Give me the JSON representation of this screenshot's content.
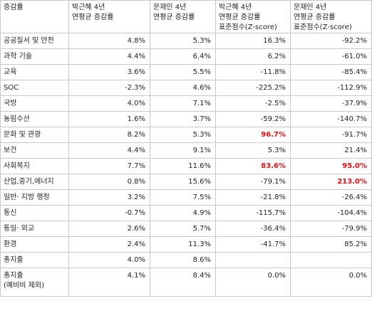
{
  "headers": [
    [
      "증감률"
    ],
    [
      "박근혜 4년",
      "연평균 증감률"
    ],
    [
      "문재인 4년",
      "연평균 증감률"
    ],
    [
      "박근혜 4년",
      "연평균 증감률",
      "표준점수(Z-score)"
    ],
    [
      "문재인 4년",
      "연평균 증감률",
      "표준점수(Z-score)"
    ]
  ],
  "rows": [
    {
      "label": [
        "공공질서 및 안전"
      ],
      "cells": [
        "4.8%",
        "5.3%",
        "16.3%",
        "-92.2%"
      ],
      "highlight": [
        false,
        false,
        false,
        false
      ]
    },
    {
      "label": [
        "과학 기술"
      ],
      "cells": [
        "4.4%",
        "6.4%",
        "6.2%",
        "-61.0%"
      ],
      "highlight": [
        false,
        false,
        false,
        false
      ]
    },
    {
      "label": [
        "교육"
      ],
      "cells": [
        "3.6%",
        "5.5%",
        "-11.8%",
        "-85.4%"
      ],
      "highlight": [
        false,
        false,
        false,
        false
      ]
    },
    {
      "label": [
        "SOC"
      ],
      "cells": [
        "-2.3%",
        "4.6%",
        "-225.2%",
        "-112.9%"
      ],
      "highlight": [
        false,
        false,
        false,
        false
      ]
    },
    {
      "label": [
        "국방"
      ],
      "cells": [
        "4.0%",
        "7.1%",
        "-2.5%",
        "-37.9%"
      ],
      "highlight": [
        false,
        false,
        false,
        false
      ]
    },
    {
      "label": [
        "농림수산"
      ],
      "cells": [
        "1.6%",
        "3.7%",
        "-59.2%",
        "-140.7%"
      ],
      "highlight": [
        false,
        false,
        false,
        false
      ]
    },
    {
      "label": [
        "문화 및 관광"
      ],
      "cells": [
        "8.2%",
        "5.3%",
        "96.7%",
        "-91.7%"
      ],
      "highlight": [
        false,
        false,
        true,
        false
      ]
    },
    {
      "label": [
        "보건"
      ],
      "cells": [
        "4.4%",
        "9.1%",
        "5.3%",
        "21.4%"
      ],
      "highlight": [
        false,
        false,
        false,
        false
      ]
    },
    {
      "label": [
        "사회복지"
      ],
      "cells": [
        "7.7%",
        "11.6%",
        "83.6%",
        "95.0%"
      ],
      "highlight": [
        false,
        false,
        true,
        true
      ]
    },
    {
      "label": [
        "산업,중기,에너지"
      ],
      "cells": [
        "0.8%",
        "15.6%",
        "-79.1%",
        "213.0%"
      ],
      "highlight": [
        false,
        false,
        false,
        true
      ]
    },
    {
      "label": [
        "일반· 지방 행정"
      ],
      "cells": [
        "3.2%",
        "7.5%",
        "-21.8%",
        "-26.4%"
      ],
      "highlight": [
        false,
        false,
        false,
        false
      ]
    },
    {
      "label": [
        "통신"
      ],
      "cells": [
        "-0.7%",
        "4.9%",
        "-115.7%",
        "-104.4%"
      ],
      "highlight": [
        false,
        false,
        false,
        false
      ]
    },
    {
      "label": [
        "통일· 외교"
      ],
      "cells": [
        "2.6%",
        "5.7%",
        "-36.4%",
        "-79.9%"
      ],
      "highlight": [
        false,
        false,
        false,
        false
      ]
    },
    {
      "label": [
        "환경"
      ],
      "cells": [
        "2.4%",
        "11.3%",
        "-41.7%",
        "85.2%"
      ],
      "highlight": [
        false,
        false,
        false,
        false
      ]
    },
    {
      "label": [
        "총지출"
      ],
      "cells": [
        "4.0%",
        "8.6%",
        "",
        ""
      ],
      "highlight": [
        false,
        false,
        false,
        false
      ]
    },
    {
      "label": [
        "총지출",
        "(예비비 제외)"
      ],
      "cells": [
        "4.1%",
        "8.4%",
        "0.0%",
        "0.0%"
      ],
      "highlight": [
        false,
        false,
        false,
        false
      ]
    }
  ],
  "colors": {
    "highlight": "#e01010",
    "border": "#c8c8c8",
    "text": "#222222"
  }
}
